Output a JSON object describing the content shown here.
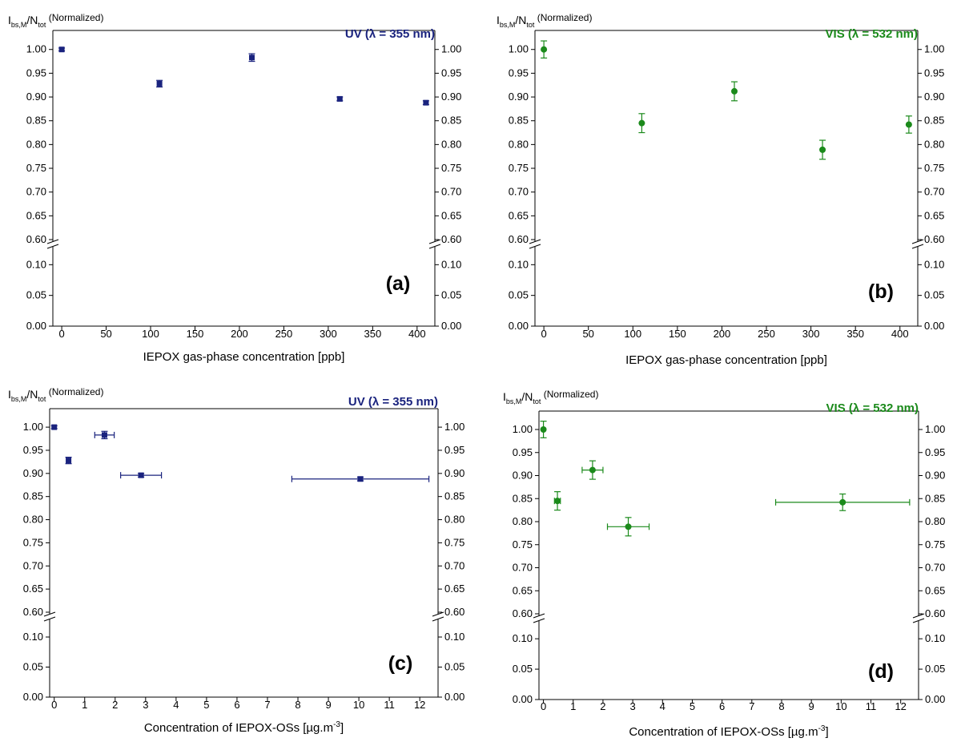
{
  "figure": {
    "y_label": {
      "main_1": "I",
      "sub_1": "bs,M",
      "main_2": "/N",
      "sub_2": "tot",
      "note": "(Normalized)"
    },
    "colors": {
      "uv": "#1a237e",
      "vis": "#1b8a1b"
    }
  },
  "chart_data": [
    {
      "type": "scatter",
      "panel": "(a)",
      "annotation": "UV (λ = 355 nm)",
      "color": "#1a237e",
      "marker": "square",
      "xlabel": "IEPOX gas-phase concentration [ppb]",
      "xlim": [
        -10,
        420
      ],
      "xticks": [
        0,
        50,
        100,
        150,
        200,
        250,
        300,
        350,
        400
      ],
      "ylim_lower": [
        0.0,
        0.12
      ],
      "ylim_upper": [
        0.6,
        1.04
      ],
      "yticks_lower": [
        "0.00",
        "0.05",
        "0.10"
      ],
      "yticks_upper": [
        "0.60",
        "0.65",
        "0.70",
        "0.75",
        "0.80",
        "0.85",
        "0.90",
        "0.95",
        "1.00"
      ],
      "axis_break": true,
      "points": [
        {
          "x": 0,
          "y": 1.0,
          "yerr": 0.003,
          "xerr": 0
        },
        {
          "x": 110,
          "y": 0.928,
          "yerr": 0.007,
          "xerr": 0
        },
        {
          "x": 214,
          "y": 0.983,
          "yerr": 0.008,
          "xerr": 0
        },
        {
          "x": 313,
          "y": 0.896,
          "yerr": 0.004,
          "xerr": 0
        },
        {
          "x": 410,
          "y": 0.888,
          "yerr": 0.004,
          "xerr": 0
        }
      ]
    },
    {
      "type": "scatter",
      "panel": "(b)",
      "annotation": "VIS (λ = 532 nm)",
      "color": "#1b8a1b",
      "marker": "circle",
      "xlabel": "IEPOX gas-phase concentration [ppb]",
      "xlim": [
        -10,
        420
      ],
      "xticks": [
        0,
        50,
        100,
        150,
        200,
        250,
        300,
        350,
        400
      ],
      "ylim_lower": [
        0.0,
        0.12
      ],
      "ylim_upper": [
        0.6,
        1.04
      ],
      "yticks_lower": [
        "0.00",
        "0.05",
        "0.10"
      ],
      "yticks_upper": [
        "0.60",
        "0.65",
        "0.70",
        "0.75",
        "0.80",
        "0.85",
        "0.90",
        "0.95",
        "1.00"
      ],
      "axis_break": true,
      "points": [
        {
          "x": 0,
          "y": 1.0,
          "yerr": 0.018,
          "xerr": 0
        },
        {
          "x": 110,
          "y": 0.845,
          "yerr": 0.02,
          "xerr": 0
        },
        {
          "x": 214,
          "y": 0.912,
          "yerr": 0.02,
          "xerr": 0
        },
        {
          "x": 313,
          "y": 0.789,
          "yerr": 0.02,
          "xerr": 0
        },
        {
          "x": 410,
          "y": 0.842,
          "yerr": 0.018,
          "xerr": 0
        }
      ]
    },
    {
      "type": "scatter",
      "panel": "(c)",
      "annotation": "UV (λ = 355 nm)",
      "color": "#1a237e",
      "marker": "square",
      "xlabel": "Concentration of IEPOX-OSs [µg.m",
      "xlabel_sup": "-3",
      "xlabel_end": "]",
      "xlim": [
        -0.15,
        12.6
      ],
      "xticks": [
        0,
        1,
        2,
        3,
        4,
        5,
        6,
        7,
        8,
        9,
        10,
        11,
        12
      ],
      "ylim_lower": [
        0.0,
        0.12
      ],
      "ylim_upper": [
        0.6,
        1.04
      ],
      "yticks_lower": [
        "0.00",
        "0.05",
        "0.10"
      ],
      "yticks_upper": [
        "0.60",
        "0.65",
        "0.70",
        "0.75",
        "0.80",
        "0.85",
        "0.90",
        "0.95",
        "1.00"
      ],
      "axis_break": true,
      "points": [
        {
          "x": 0.0,
          "y": 1.0,
          "yerr": 0.003,
          "xerr": 0
        },
        {
          "x": 0.47,
          "y": 0.928,
          "yerr": 0.007,
          "xerr": 0.07
        },
        {
          "x": 1.65,
          "y": 0.983,
          "yerr": 0.008,
          "xerr": 0.32
        },
        {
          "x": 2.85,
          "y": 0.896,
          "yerr": 0.004,
          "xerr": 0.67
        },
        {
          "x": 10.05,
          "y": 0.888,
          "yerr": 0.004,
          "xerr": 2.25
        }
      ]
    },
    {
      "type": "scatter",
      "panel": "(d)",
      "annotation": "VIS (λ = 532 nm)",
      "color": "#1b8a1b",
      "marker": "circle",
      "xlabel": "Concentration of IEPOX-OSs [µg.m",
      "xlabel_sup": "-3",
      "xlabel_end": "]",
      "xlim": [
        -0.15,
        12.6
      ],
      "xticks": [
        0,
        1,
        2,
        3,
        4,
        5,
        6,
        7,
        8,
        9,
        10,
        11,
        12
      ],
      "ylim_lower": [
        0.0,
        0.12
      ],
      "ylim_upper": [
        0.6,
        1.04
      ],
      "yticks_lower": [
        "0.00",
        "0.05",
        "0.10"
      ],
      "yticks_upper": [
        "0.60",
        "0.65",
        "0.70",
        "0.75",
        "0.80",
        "0.85",
        "0.90",
        "0.95",
        "1.00"
      ],
      "axis_break": true,
      "points": [
        {
          "x": 0.0,
          "y": 1.0,
          "yerr": 0.018,
          "xerr": 0
        },
        {
          "x": 0.47,
          "y": 0.845,
          "yerr": 0.02,
          "xerr": 0.1
        },
        {
          "x": 1.65,
          "y": 0.912,
          "yerr": 0.02,
          "xerr": 0.35
        },
        {
          "x": 2.85,
          "y": 0.789,
          "yerr": 0.02,
          "xerr": 0.7
        },
        {
          "x": 10.05,
          "y": 0.842,
          "yerr": 0.018,
          "xerr": 2.25
        }
      ]
    }
  ]
}
